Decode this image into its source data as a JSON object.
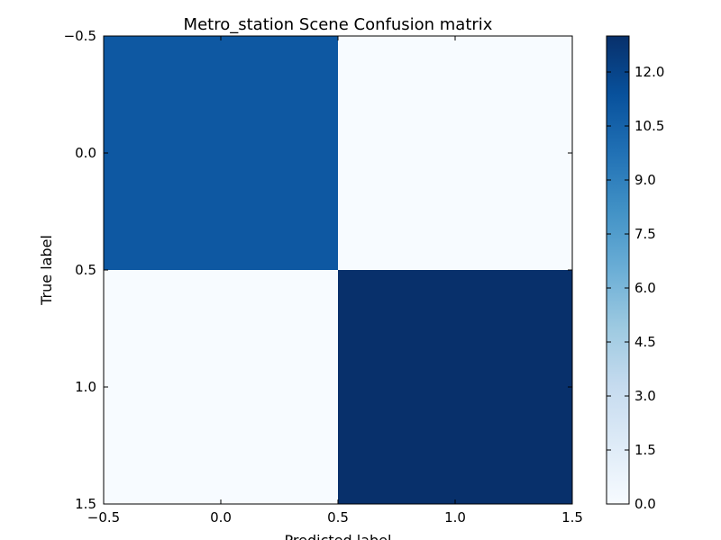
{
  "chart_data": {
    "type": "heatmap",
    "title": "Metro_station Scene Confusion matrix",
    "xlabel": "Predicted label",
    "ylabel": "True label",
    "matrix": [
      [
        11,
        0
      ],
      [
        0,
        13
      ]
    ],
    "xlim": [
      -0.5,
      1.5
    ],
    "ylim": [
      1.5,
      -0.5
    ],
    "x_ticks": [
      -0.5,
      0.0,
      0.5,
      1.0,
      1.5
    ],
    "x_tick_labels": [
      "−0.5",
      "0.0",
      "0.5",
      "1.0",
      "1.5"
    ],
    "y_ticks": [
      -0.5,
      0.0,
      0.5,
      1.0,
      1.5
    ],
    "y_tick_labels": [
      "−0.5",
      "0.0",
      "0.5",
      "1.0",
      "1.5"
    ],
    "colormap": "Blues",
    "colorbar": {
      "range": [
        0,
        13
      ],
      "ticks": [
        0.0,
        1.5,
        3.0,
        4.5,
        6.0,
        7.5,
        9.0,
        10.5,
        12.0
      ],
      "tick_labels": [
        "0.0",
        "1.5",
        "3.0",
        "4.5",
        "6.0",
        "7.5",
        "9.0",
        "10.5",
        "12.0"
      ]
    },
    "grid": false
  }
}
